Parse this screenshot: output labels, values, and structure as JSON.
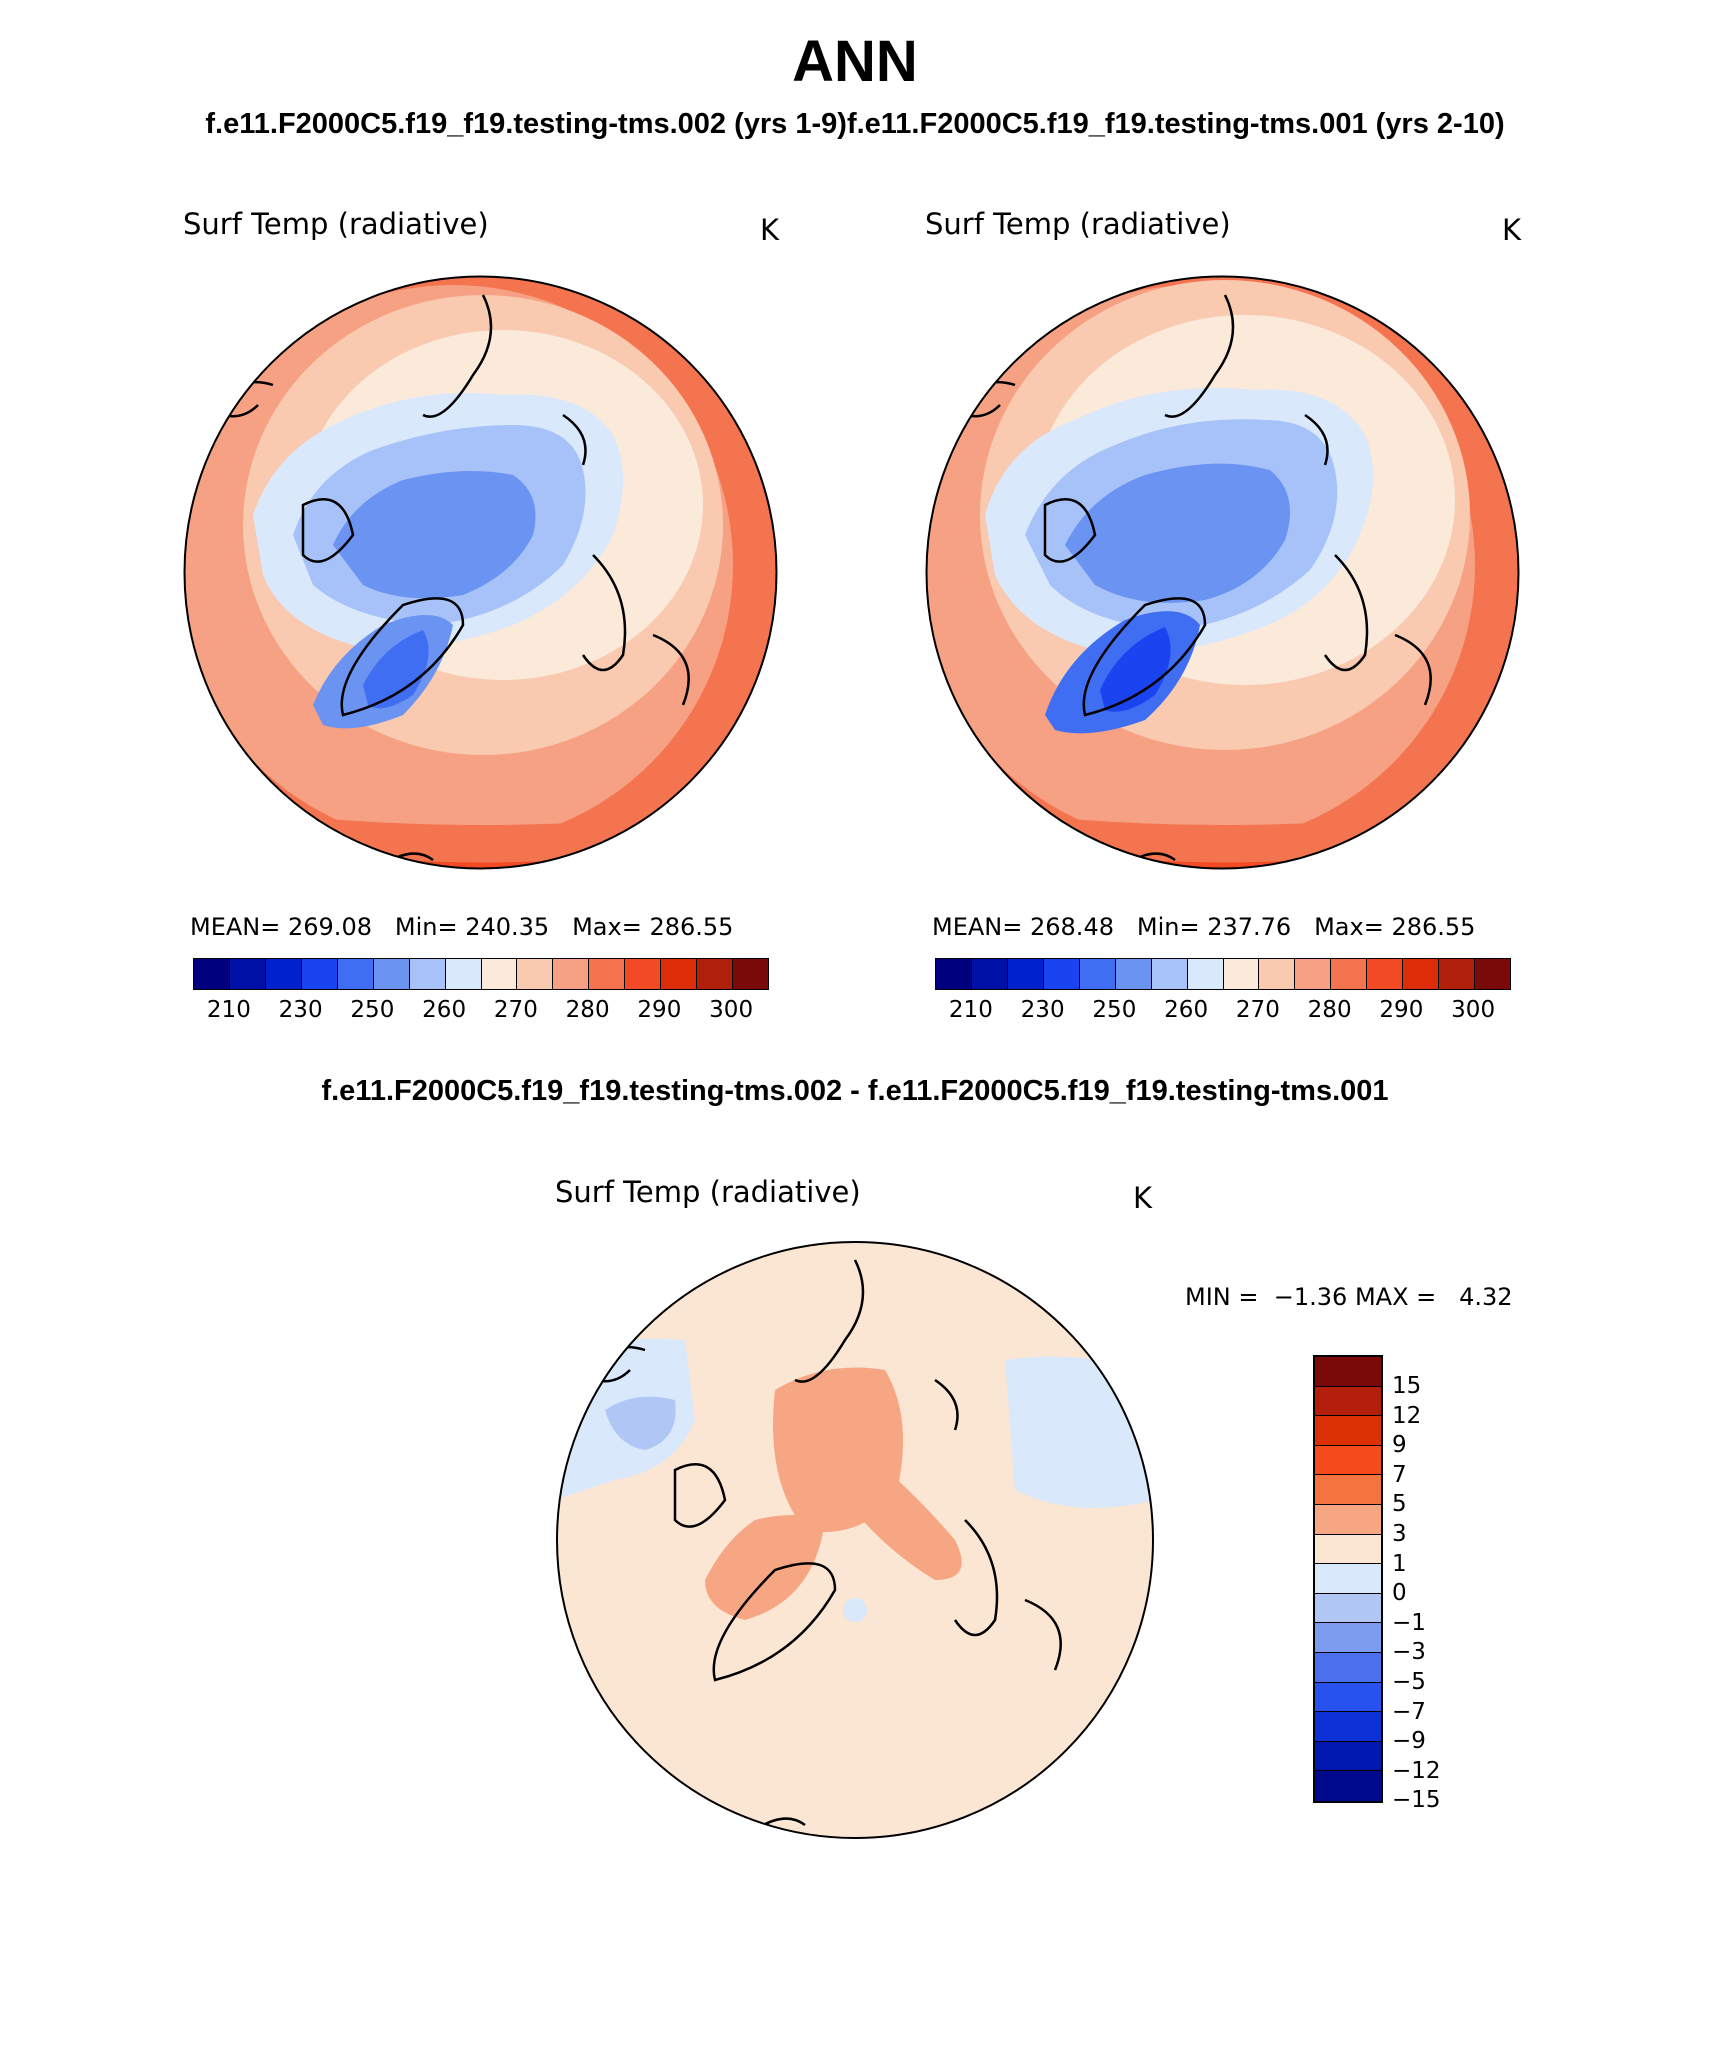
{
  "title": "ANN",
  "subtitle_left": "f.e11.F2000C5.f19_f19.testing-tms.002 (yrs 1-9)",
  "subtitle_right": "f.e11.F2000C5.f19_f19.testing-tms.001 (yrs 2-10)",
  "diff_title": "f.e11.F2000C5.f19_f19.testing-tms.002 - f.e11.F2000C5.f19_f19.testing-tms.001",
  "panels": [
    {
      "variable": "Surf Temp (radiative)",
      "units": "K",
      "mean_label": "MEAN=",
      "mean": "269.08",
      "min_label": "Min=",
      "min": "240.35",
      "max_label": "Max=",
      "max": "286.55"
    },
    {
      "variable": "Surf Temp (radiative)",
      "units": "K",
      "mean_label": "MEAN=",
      "mean": "268.48",
      "min_label": "Min=",
      "min": "237.76",
      "max_label": "Max=",
      "max": "286.55"
    }
  ],
  "diff_panel": {
    "variable": "Surf Temp (radiative)",
    "units": "K",
    "min_label": "MIN =",
    "min": "−1.36",
    "max_label": "MAX =",
    "max": "4.32"
  },
  "abs_colorbar": {
    "colors": [
      "#00007f",
      "#0011a8",
      "#0022cc",
      "#1944f0",
      "#3f6ef3",
      "#6a93f2",
      "#a7c2f8",
      "#d9e8fb",
      "#fbe9da",
      "#f9c9b0",
      "#f6a183",
      "#f47450",
      "#f24a24",
      "#dd2c08",
      "#b0200a",
      "#7a0a0a"
    ],
    "ticks": [
      "210",
      "230",
      "250",
      "260",
      "270",
      "280",
      "290",
      "300"
    ]
  },
  "diff_colorbar": {
    "colors": [
      "#7a0a0a",
      "#b31f0a",
      "#dc3005",
      "#f44a1c",
      "#f5733f",
      "#f7a683",
      "#fbe6d3",
      "#d9e8fb",
      "#b0c7f6",
      "#7c9cf0",
      "#4b70ee",
      "#2752ee",
      "#0d30d6",
      "#0018b0",
      "#000a8c"
    ],
    "ticks": [
      "15",
      "12",
      "9",
      "7",
      "5",
      "3",
      "1",
      "0",
      "−1",
      "−3",
      "−5",
      "−7",
      "−9",
      "−12",
      "−15"
    ]
  }
}
